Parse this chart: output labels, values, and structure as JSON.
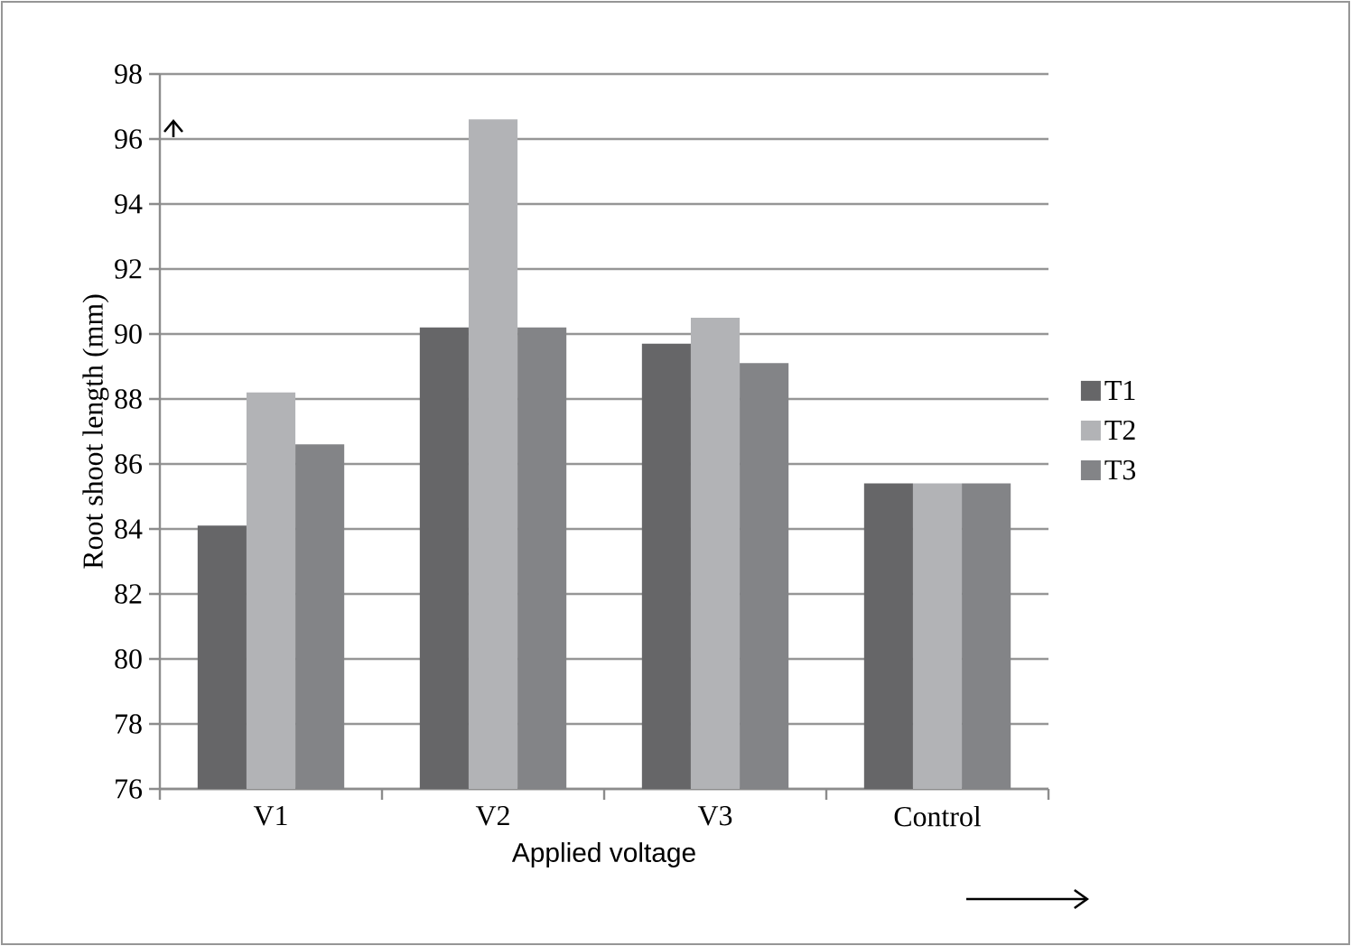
{
  "chart_data": {
    "type": "bar",
    "xlabel": "Applied voltage",
    "ylabel": "Root shoot length (mm)",
    "categories": [
      "V1",
      "V2",
      "V3",
      "Control"
    ],
    "series": [
      {
        "name": "T1",
        "color": "#666668",
        "values": [
          84.1,
          90.2,
          89.7,
          85.4
        ]
      },
      {
        "name": "T2",
        "color": "#b2b3b6",
        "values": [
          88.2,
          96.6,
          90.5,
          85.4
        ]
      },
      {
        "name": "T3",
        "color": "#838487",
        "values": [
          86.6,
          90.2,
          89.1,
          85.4
        ]
      }
    ],
    "ylim": [
      76,
      98
    ],
    "yticks": [
      76,
      78,
      80,
      82,
      84,
      86,
      88,
      90,
      92,
      94,
      96,
      98
    ],
    "grid": "y",
    "legend": "right"
  }
}
